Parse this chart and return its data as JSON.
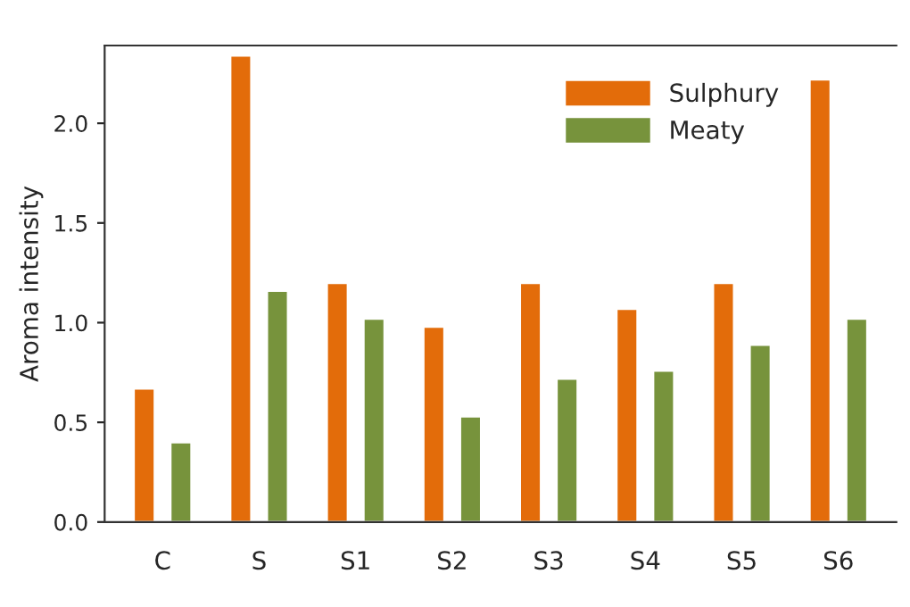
{
  "chart_data": {
    "type": "bar",
    "ylabel": "Aroma intensity",
    "categories": [
      "C",
      "S",
      "S1",
      "S2",
      "S3",
      "S4",
      "S5",
      "S6"
    ],
    "series": [
      {
        "name": "Sulphury",
        "color": "#e36c0a",
        "values": [
          0.67,
          2.34,
          1.2,
          0.98,
          1.2,
          1.07,
          1.2,
          2.22
        ]
      },
      {
        "name": "Meaty",
        "color": "#77933c",
        "values": [
          0.4,
          1.16,
          1.02,
          0.53,
          0.72,
          0.76,
          0.89,
          1.02
        ]
      }
    ],
    "ylim": [
      0,
      2.39
    ],
    "yticks": [
      {
        "value": 0,
        "label": "0.0"
      },
      {
        "value": 0.5,
        "label": "0.5"
      },
      {
        "value": 1,
        "label": "1.0"
      },
      {
        "value": 1.5,
        "label": "1.5"
      },
      {
        "value": 2,
        "label": "2.0"
      }
    ],
    "grid": false,
    "legend": "top right"
  }
}
